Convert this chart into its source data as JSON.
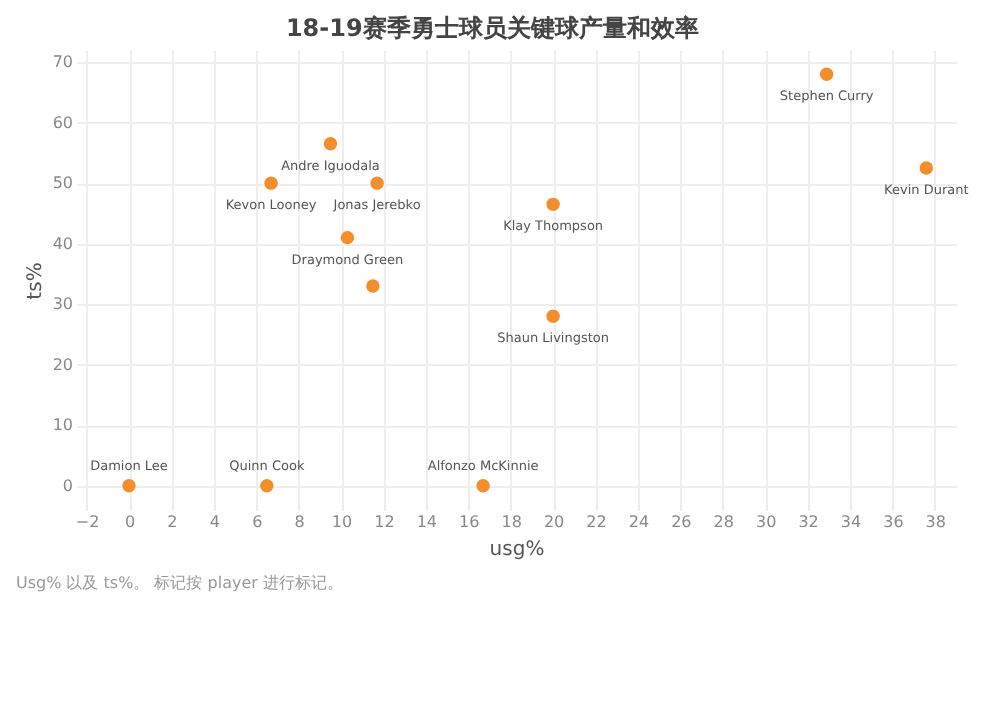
{
  "chart_data": {
    "type": "scatter",
    "title": "18-19赛季勇士球员关键球产量和效率",
    "xlabel": "usg%",
    "ylabel": "ts%",
    "x": [
      0,
      6.5,
      16.7,
      6.7,
      9.5,
      11.7,
      10.3,
      11.5,
      20.0,
      20.0,
      32.9,
      37.6
    ],
    "series": [
      {
        "color": "#f28e2b",
        "values": [
          0,
          0,
          0,
          50,
          56.5,
          50,
          41,
          33,
          28,
          46.5,
          68,
          52.5
        ]
      }
    ],
    "xlim": [
      -2.5,
      39
    ],
    "xticks": [
      -2,
      0,
      2,
      4,
      6,
      8,
      10,
      12,
      14,
      16,
      18,
      20,
      22,
      24,
      26,
      28,
      30,
      32,
      34,
      36,
      38
    ],
    "ylim": [
      -4,
      72
    ],
    "yticks": [
      0,
      10,
      20,
      30,
      40,
      50,
      60,
      70
    ],
    "grid": true,
    "marker": "circle",
    "annotations": [
      {
        "text": "Damion Lee",
        "x": 0,
        "y": 0
      },
      {
        "text": "Quinn Cook",
        "x": 6.5,
        "y": 0
      },
      {
        "text": "Alfonzo McKinnie",
        "x": 16.7,
        "y": 0
      },
      {
        "text": "Kevon Looney",
        "x": 6.7,
        "y": 50
      },
      {
        "text": "Andre Iguodala",
        "x": 9.5,
        "y": 56.5
      },
      {
        "text": "Jonas Jerebko",
        "x": 11.7,
        "y": 50
      },
      {
        "text": "Draymond Green",
        "x": 10.3,
        "y": 41
      },
      {
        "text": "Shaun Livingston",
        "x": 20.0,
        "y": 28
      },
      {
        "text": "Klay Thompson",
        "x": 20.0,
        "y": 46.5
      },
      {
        "text": "Stephen Curry",
        "x": 32.9,
        "y": 68
      },
      {
        "text": "Kevin Durant",
        "x": 37.6,
        "y": 52.5
      },
      "Usg% 以及 ts%。 标记按 player 进行标记。"
    ]
  }
}
